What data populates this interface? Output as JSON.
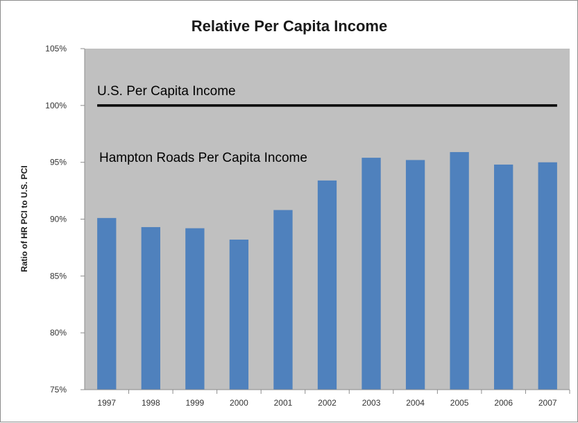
{
  "chart_data": {
    "type": "bar",
    "title": "Relative Per Capita Income",
    "xlabel": "",
    "ylabel": "Ratio of HR PCI to U.S. PCI",
    "categories": [
      "1997",
      "1998",
      "1999",
      "2000",
      "2001",
      "2002",
      "2003",
      "2004",
      "2005",
      "2006",
      "2007"
    ],
    "values": [
      90.1,
      89.3,
      89.2,
      88.2,
      90.8,
      93.4,
      95.4,
      95.2,
      95.9,
      94.8,
      95.0
    ],
    "ylim": [
      75,
      105
    ],
    "yticks": [
      75,
      80,
      85,
      90,
      95,
      100,
      105
    ],
    "ytick_labels": [
      "75%",
      "80%",
      "85%",
      "90%",
      "95%",
      "100%",
      "105%"
    ],
    "reference_line": {
      "value": 100,
      "label": "U.S. Per Capita Income",
      "color": "#000000"
    },
    "bar_annotation": "Hampton Roads Per Capita Income",
    "bar_color": "#4f81bd",
    "plot_background": "#c0c0c0",
    "grid": false,
    "legend": "none"
  }
}
